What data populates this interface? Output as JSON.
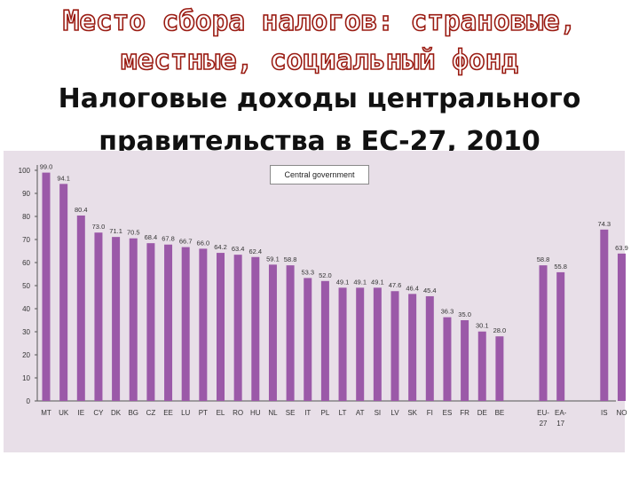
{
  "slide": {
    "title_line1": "Место сбора налогов: страновые,",
    "title_line2": "местные, социальный фонд",
    "title_line3": "Налоговые доходы центрального",
    "title_line4": "правительства в ЕС-27, 2010"
  },
  "colors": {
    "bar": "#9b59a8",
    "chart_background": "#e8dfe8",
    "title_outline": "#9a1b12"
  },
  "chart_data": {
    "type": "bar",
    "legend": "Central government",
    "ylim": [
      0,
      100
    ],
    "yticks": [
      0,
      10,
      20,
      30,
      40,
      50,
      60,
      70,
      80,
      90,
      100
    ],
    "groups": [
      [
        {
          "label": "MT",
          "value": 99.0
        },
        {
          "label": "UK",
          "value": 94.1
        },
        {
          "label": "IE",
          "value": 80.4
        },
        {
          "label": "CY",
          "value": 73.0
        },
        {
          "label": "DK",
          "value": 71.1
        },
        {
          "label": "BG",
          "value": 70.5
        },
        {
          "label": "CZ",
          "value": 68.4
        },
        {
          "label": "EE",
          "value": 67.8
        },
        {
          "label": "LU",
          "value": 66.7
        },
        {
          "label": "PT",
          "value": 66.0
        },
        {
          "label": "EL",
          "value": 64.2
        },
        {
          "label": "RO",
          "value": 63.4
        },
        {
          "label": "HU",
          "value": 62.4
        },
        {
          "label": "NL",
          "value": 59.1
        },
        {
          "label": "SE",
          "value": 58.8
        },
        {
          "label": "IT",
          "value": 53.3
        },
        {
          "label": "PL",
          "value": 52.0
        },
        {
          "label": "LT",
          "value": 49.1
        },
        {
          "label": "AT",
          "value": 49.1
        },
        {
          "label": "SI",
          "value": 49.1
        },
        {
          "label": "LV",
          "value": 47.6
        },
        {
          "label": "SK",
          "value": 46.4
        },
        {
          "label": "FI",
          "value": 45.4
        },
        {
          "label": "ES",
          "value": 36.3
        },
        {
          "label": "FR",
          "value": 35.0
        },
        {
          "label": "DE",
          "value": 30.1
        },
        {
          "label": "BE",
          "value": 28.0
        }
      ],
      [
        {
          "label": "EU-\n27",
          "value": 58.8
        },
        {
          "label": "EA-\n17",
          "value": 55.8
        }
      ],
      [
        {
          "label": "IS",
          "value": 74.3
        },
        {
          "label": "NO",
          "value": 63.9
        }
      ]
    ]
  }
}
